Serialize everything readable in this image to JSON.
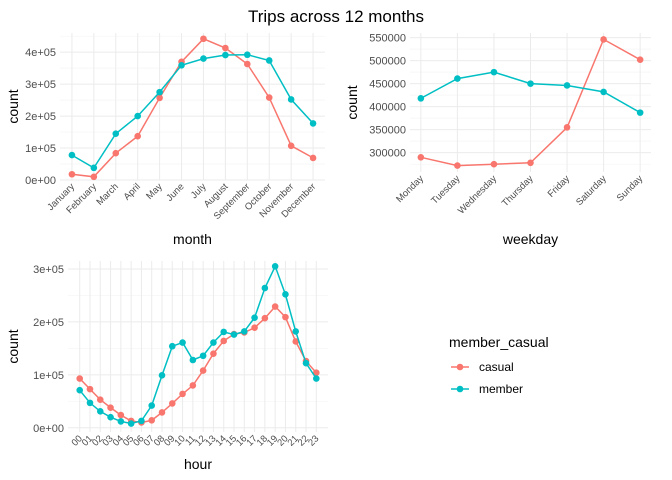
{
  "figure": {
    "title": "Trips across 12 months"
  },
  "legend": {
    "title": "member_casual",
    "entries": [
      {
        "name": "casual",
        "color": "#F8766D"
      },
      {
        "name": "member",
        "color": "#00BFC4"
      }
    ]
  },
  "chart_data": [
    {
      "id": "month",
      "type": "line",
      "xlabel": "month",
      "ylabel": "count",
      "categories": [
        "January",
        "February",
        "March",
        "April",
        "May",
        "June",
        "July",
        "August",
        "September",
        "October",
        "November",
        "December"
      ],
      "ylim": [
        0,
        460000
      ],
      "yticks": [
        0,
        100000,
        200000,
        300000,
        400000
      ],
      "ytick_labels": [
        "0e+00",
        "1e+05",
        "2e+05",
        "3e+05",
        "4e+05"
      ],
      "series": [
        {
          "name": "casual",
          "color": "#F8766D",
          "values": [
            18000,
            10000,
            84000,
            137000,
            257000,
            370000,
            442000,
            413000,
            363000,
            258000,
            107000,
            69000
          ]
        },
        {
          "name": "member",
          "color": "#00BFC4",
          "values": [
            78000,
            38000,
            145000,
            200000,
            275000,
            359000,
            380000,
            391000,
            392000,
            374000,
            252000,
            177000
          ]
        }
      ]
    },
    {
      "id": "weekday",
      "type": "line",
      "xlabel": "weekday",
      "ylabel": "count",
      "categories": [
        "Monday",
        "Tuesday",
        "Wednesday",
        "Thursday",
        "Friday",
        "Saturday",
        "Sunday"
      ],
      "ylim": [
        258000,
        560000
      ],
      "yticks": [
        300000,
        350000,
        400000,
        450000,
        500000,
        550000
      ],
      "ytick_labels": [
        "300000",
        "350000",
        "400000",
        "450000",
        "500000",
        "550000"
      ],
      "series": [
        {
          "name": "casual",
          "color": "#F8766D",
          "values": [
            290000,
            272000,
            275000,
            278000,
            355000,
            546000,
            502000
          ]
        },
        {
          "name": "member",
          "color": "#00BFC4",
          "values": [
            418000,
            461000,
            475000,
            450000,
            446000,
            432000,
            387000
          ]
        }
      ]
    },
    {
      "id": "hour",
      "type": "line",
      "xlabel": "hour",
      "ylabel": "count",
      "categories": [
        "00",
        "01",
        "02",
        "03",
        "04",
        "05",
        "06",
        "07",
        "08",
        "09",
        "10",
        "11",
        "12",
        "13",
        "14",
        "15",
        "16",
        "17",
        "18",
        "19",
        "20",
        "21",
        "22",
        "23"
      ],
      "ylim": [
        -8000,
        315000
      ],
      "yticks": [
        0,
        100000,
        200000,
        300000
      ],
      "ytick_labels": [
        "0e+00",
        "1e+05",
        "2e+05",
        "3e+05"
      ],
      "series": [
        {
          "name": "casual",
          "color": "#F8766D",
          "values": [
            93000,
            73000,
            53000,
            38000,
            24000,
            13000,
            10000,
            14000,
            29000,
            46000,
            64000,
            80000,
            108000,
            140000,
            164000,
            177000,
            180000,
            189000,
            207000,
            229000,
            209000,
            163000,
            126000,
            104000
          ]
        },
        {
          "name": "member",
          "color": "#00BFC4",
          "values": [
            71000,
            47000,
            31000,
            20000,
            12000,
            8000,
            13000,
            42000,
            99000,
            154000,
            161000,
            128000,
            136000,
            161000,
            181000,
            176000,
            182000,
            208000,
            264000,
            305000,
            252000,
            182000,
            122000,
            93000
          ]
        }
      ]
    }
  ]
}
